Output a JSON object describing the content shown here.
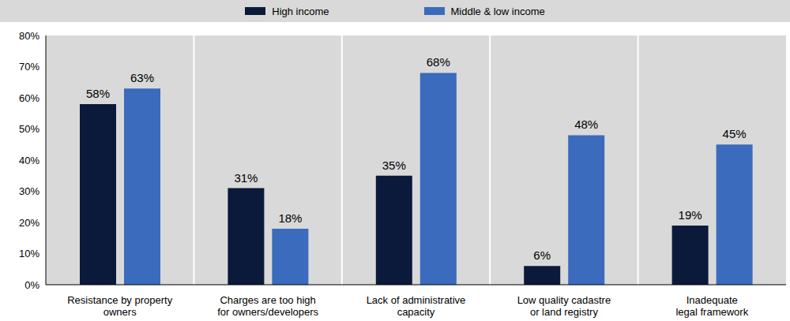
{
  "chart_data": {
    "type": "bar",
    "categories": [
      "Resistance by property\nowners",
      "Charges are too high\nfor owners/developers",
      "Lack of administrative\ncapacity",
      "Low quality cadastre\nor land registry",
      "Inadequate\nlegal framework"
    ],
    "series": [
      {
        "name": "High income",
        "color": "#0b1a3a",
        "values": [
          58,
          31,
          35,
          6,
          19
        ],
        "value_labels": [
          "58%",
          "31%",
          "35%",
          "6%",
          "19%"
        ]
      },
      {
        "name": "Middle & low income",
        "color": "#3a6bbd",
        "values": [
          63,
          18,
          68,
          48,
          45
        ],
        "value_labels": [
          "63%",
          "18%",
          "68%",
          "48%",
          "45%"
        ]
      }
    ],
    "ylim": [
      0,
      80
    ],
    "yticks": [
      {
        "value": 0,
        "label": "0%"
      },
      {
        "value": 10,
        "label": "10%"
      },
      {
        "value": 20,
        "label": "20%"
      },
      {
        "value": 30,
        "label": "30%"
      },
      {
        "value": 40,
        "label": "40%"
      },
      {
        "value": 50,
        "label": "50%"
      },
      {
        "value": 60,
        "label": "60%"
      },
      {
        "value": 70,
        "label": "70%"
      },
      {
        "value": 80,
        "label": "80%"
      }
    ],
    "legend": "top",
    "data_labels": true
  }
}
